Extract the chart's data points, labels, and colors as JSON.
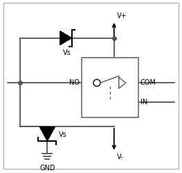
{
  "bg_color": "#ffffff",
  "border_color": "#aaaaaa",
  "wire_color": "#555555",
  "labels": {
    "Vplus": "V+",
    "Vminus": "V-",
    "GND": "GND",
    "NO": "NO",
    "COM": "COM",
    "IN": "IN",
    "Vs_top": "Vs",
    "Vs_bot": "Vs"
  },
  "font_size": 7.0
}
